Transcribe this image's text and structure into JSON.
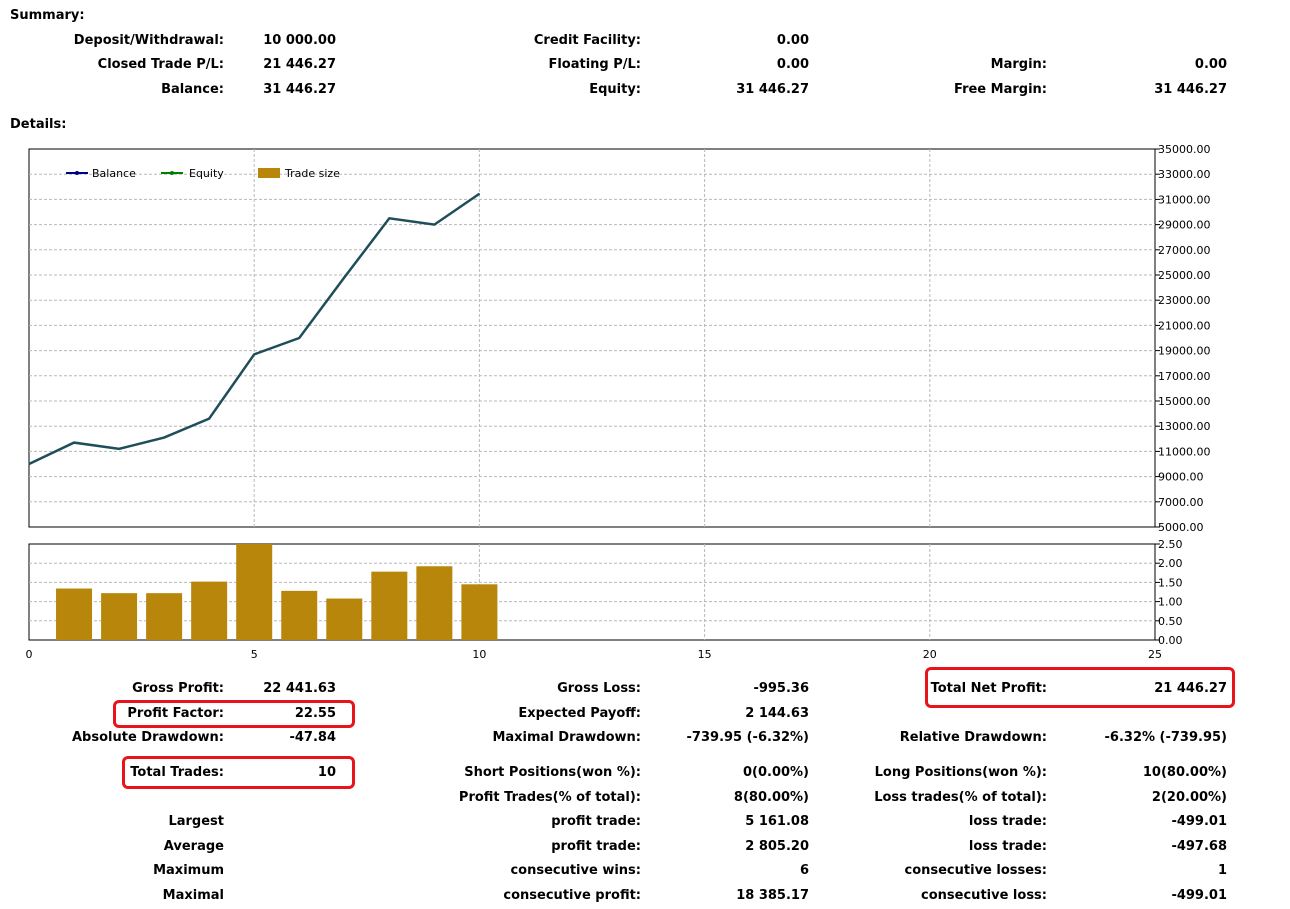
{
  "summary": {
    "title": "Summary:",
    "deposit_label": "Deposit/Withdrawal:",
    "deposit_value": "10 000.00",
    "credit_label": "Credit Facility:",
    "credit_value": "0.00",
    "closed_pl_label": "Closed Trade P/L:",
    "closed_pl_value": "21 446.27",
    "floating_pl_label": "Floating P/L:",
    "floating_pl_value": "0.00",
    "margin_label": "Margin:",
    "margin_value": "0.00",
    "balance_label": "Balance:",
    "balance_value": "31 446.27",
    "equity_label": "Equity:",
    "equity_value": "31 446.27",
    "free_margin_label": "Free Margin:",
    "free_margin_value": "31 446.27"
  },
  "details": {
    "title": "Details:"
  },
  "chart_data": [
    {
      "type": "line",
      "legend": [
        "Balance",
        "Equity",
        "Trade size"
      ],
      "legend_placement": "top-left",
      "x": [
        0,
        1,
        2,
        3,
        4,
        5,
        6,
        7,
        8,
        9,
        10
      ],
      "series": [
        {
          "name": "Balance",
          "values": [
            10000,
            11700,
            11200,
            12100,
            13600,
            18700,
            20000,
            24800,
            29500,
            29000,
            31446.27
          ]
        }
      ],
      "xlim": [
        0,
        25
      ],
      "ylim": [
        5000,
        35000
      ],
      "yticks": [
        "35000.00",
        "33000.00",
        "31000.00",
        "29000.00",
        "27000.00",
        "25000.00",
        "23000.00",
        "21000.00",
        "19000.00",
        "17000.00",
        "15000.00",
        "13000.00",
        "11000.00",
        "9000.00",
        "7000.00",
        "5000.00"
      ],
      "grid": true,
      "colors": {
        "balance": "#1f4e5a",
        "balance_legend": "#000080",
        "equity_legend": "#008000",
        "trade_size": "#b8860b"
      }
    },
    {
      "type": "bar",
      "x": [
        1,
        2,
        3,
        4,
        5,
        6,
        7,
        8,
        9,
        10
      ],
      "values": [
        1.34,
        1.22,
        1.22,
        1.52,
        2.5,
        1.28,
        1.08,
        1.78,
        1.92,
        1.45
      ],
      "ylim": [
        0,
        2.5
      ],
      "yticks": [
        "2.50",
        "2.00",
        "1.50",
        "1.00",
        "0.50",
        "0.00"
      ],
      "xticks": [
        "0",
        "5",
        "10",
        "15",
        "20",
        "25"
      ],
      "grid": true
    }
  ],
  "stats": {
    "gross_profit_label": "Gross Profit:",
    "gross_profit_value": "22 441.63",
    "gross_loss_label": "Gross Loss:",
    "gross_loss_value": "-995.36",
    "total_net_profit_label": "Total Net Profit:",
    "total_net_profit_value": "21 446.27",
    "profit_factor_label": "Profit Factor:",
    "profit_factor_value": "22.55",
    "expected_payoff_label": "Expected Payoff:",
    "expected_payoff_value": "2 144.63",
    "abs_drawdown_label": "Absolute Drawdown:",
    "abs_drawdown_value": "-47.84",
    "max_drawdown_label": "Maximal Drawdown:",
    "max_drawdown_value": "-739.95 (-6.32%)",
    "rel_drawdown_label": "Relative Drawdown:",
    "rel_drawdown_value": "-6.32% (-739.95)",
    "total_trades_label": "Total Trades:",
    "total_trades_value": "10",
    "short_label": "Short Positions(won %):",
    "short_value": "0(0.00%)",
    "long_label": "Long Positions(won %):",
    "long_value": "10(80.00%)",
    "profit_trades_label": "Profit Trades(% of total):",
    "profit_trades_value": "8(80.00%)",
    "loss_trades_label": "Loss trades(% of total):",
    "loss_trades_value": "2(20.00%)",
    "largest_label": "Largest",
    "largest_profit_label": "profit trade:",
    "largest_profit_value": "5 161.08",
    "largest_loss_label": "loss trade:",
    "largest_loss_value": "-499.01",
    "average_label": "Average",
    "average_profit_label": "profit trade:",
    "average_profit_value": "2 805.20",
    "average_loss_label": "loss trade:",
    "average_loss_value": "-497.68",
    "maximum_label": "Maximum",
    "max_wins_label": "consecutive wins:",
    "max_wins_value": "6",
    "max_losses_label": "consecutive losses:",
    "max_losses_value": "1",
    "maximal_label": "Maximal",
    "max_profit_label": "consecutive profit:",
    "max_profit_value": "18 385.17",
    "max_loss_label": "consecutive loss:",
    "max_loss_value": "-499.01"
  }
}
